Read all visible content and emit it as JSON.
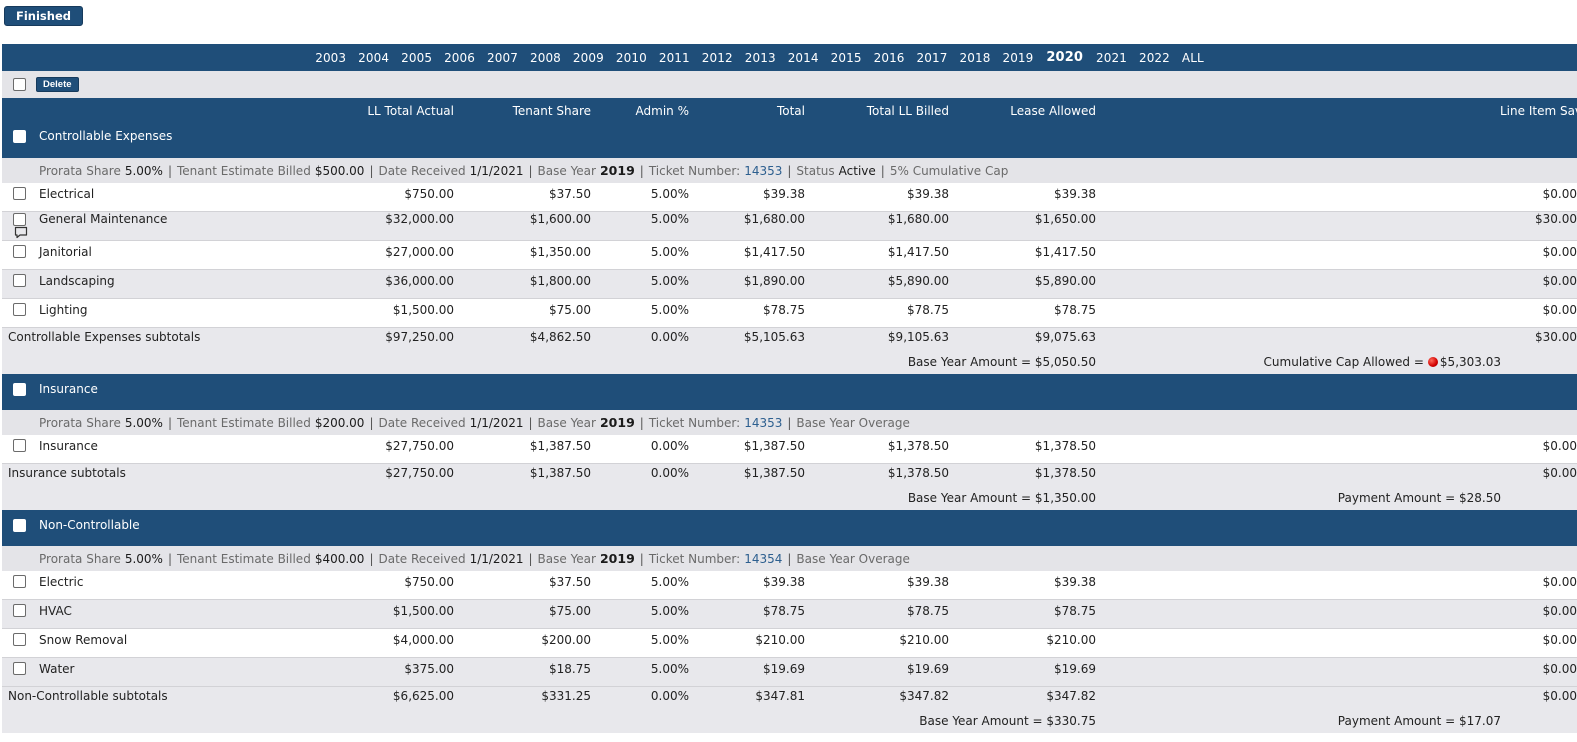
{
  "finished_label": "Finished",
  "years": [
    "2003",
    "2004",
    "2005",
    "2006",
    "2007",
    "2008",
    "2009",
    "2010",
    "2011",
    "2012",
    "2013",
    "2014",
    "2015",
    "2016",
    "2017",
    "2018",
    "2019",
    "2020",
    "2021",
    "2022",
    "ALL"
  ],
  "active_year": "2020",
  "toolbar": {
    "delete_label": "Delete"
  },
  "columns": {
    "ll_total_actual": "LL Total Actual",
    "tenant_share": "Tenant Share",
    "admin_pct": "Admin %",
    "total": "Total",
    "total_ll_billed": "Total LL Billed",
    "lease_allowed": "Lease Allowed",
    "line_item_savings": "Line Item Savings"
  },
  "info_labels": {
    "prorata": "Prorata Share",
    "estimate": "Tenant Estimate Billed",
    "date_received": "Date Received",
    "base_year": "Base Year",
    "ticket": "Ticket Number:",
    "status": "Status"
  },
  "sections": [
    {
      "title": "Controllable Expenses",
      "info": {
        "prorata": "5.00%",
        "estimate": "$500.00",
        "date_received": "1/1/2021",
        "base_year": "2019",
        "ticket": "14353",
        "status": "Active",
        "extra": "5% Cumulative Cap"
      },
      "rows": [
        {
          "name": "Electrical",
          "ll": "$750.00",
          "share": "$37.50",
          "admin": "5.00%",
          "total": "$39.38",
          "billed": "$39.38",
          "allowed": "$39.38",
          "savings": "$0.00"
        },
        {
          "name": "General Maintenance",
          "ll": "$32,000.00",
          "share": "$1,600.00",
          "admin": "5.00%",
          "total": "$1,680.00",
          "billed": "$1,680.00",
          "allowed": "$1,650.00",
          "savings": "$30.00",
          "comment": true
        },
        {
          "name": "Janitorial",
          "ll": "$27,000.00",
          "share": "$1,350.00",
          "admin": "5.00%",
          "total": "$1,417.50",
          "billed": "$1,417.50",
          "allowed": "$1,417.50",
          "savings": "$0.00"
        },
        {
          "name": "Landscaping",
          "ll": "$36,000.00",
          "share": "$1,800.00",
          "admin": "5.00%",
          "total": "$1,890.00",
          "billed": "$5,890.00",
          "allowed": "$5,890.00",
          "savings": "$0.00"
        },
        {
          "name": "Lighting",
          "ll": "$1,500.00",
          "share": "$75.00",
          "admin": "5.00%",
          "total": "$78.75",
          "billed": "$78.75",
          "allowed": "$78.75",
          "savings": "$0.00"
        }
      ],
      "subtotal": {
        "name": "Controllable Expenses subtotals",
        "ll": "$97,250.00",
        "share": "$4,862.50",
        "admin": "0.00%",
        "total": "$5,105.63",
        "billed": "$9,105.63",
        "allowed": "$9,075.63",
        "savings": "$30.00"
      },
      "footer": {
        "left": "Base Year Amount = $5,050.50",
        "right_label": "Cumulative Cap Allowed =",
        "right_value": "$5,303.03",
        "dot": true
      }
    },
    {
      "title": "Insurance",
      "info": {
        "prorata": "5.00%",
        "estimate": "$200.00",
        "date_received": "1/1/2021",
        "base_year": "2019",
        "ticket": "14353",
        "extra": "Base Year Overage"
      },
      "rows": [
        {
          "name": "Insurance",
          "ll": "$27,750.00",
          "share": "$1,387.50",
          "admin": "0.00%",
          "total": "$1,387.50",
          "billed": "$1,378.50",
          "allowed": "$1,378.50",
          "savings": "$0.00"
        }
      ],
      "subtotal": {
        "name": "Insurance subtotals",
        "ll": "$27,750.00",
        "share": "$1,387.50",
        "admin": "0.00%",
        "total": "$1,387.50",
        "billed": "$1,378.50",
        "allowed": "$1,378.50",
        "savings": "$0.00"
      },
      "footer": {
        "left": "Base Year Amount = $1,350.00",
        "right_label": "Payment Amount =",
        "right_value": "$28.50"
      }
    },
    {
      "title": "Non-Controllable",
      "info": {
        "prorata": "5.00%",
        "estimate": "$400.00",
        "date_received": "1/1/2021",
        "base_year": "2019",
        "ticket": "14354",
        "extra": "Base Year Overage"
      },
      "rows": [
        {
          "name": "Electric",
          "ll": "$750.00",
          "share": "$37.50",
          "admin": "5.00%",
          "total": "$39.38",
          "billed": "$39.38",
          "allowed": "$39.38",
          "savings": "$0.00"
        },
        {
          "name": "HVAC",
          "ll": "$1,500.00",
          "share": "$75.00",
          "admin": "5.00%",
          "total": "$78.75",
          "billed": "$78.75",
          "allowed": "$78.75",
          "savings": "$0.00"
        },
        {
          "name": "Snow Removal",
          "ll": "$4,000.00",
          "share": "$200.00",
          "admin": "5.00%",
          "total": "$210.00",
          "billed": "$210.00",
          "allowed": "$210.00",
          "savings": "$0.00"
        },
        {
          "name": "Water",
          "ll": "$375.00",
          "share": "$18.75",
          "admin": "5.00%",
          "total": "$19.69",
          "billed": "$19.69",
          "allowed": "$19.69",
          "savings": "$0.00"
        }
      ],
      "subtotal": {
        "name": "Non-Controllable subtotals",
        "ll": "$6,625.00",
        "share": "$331.25",
        "admin": "0.00%",
        "total": "$347.81",
        "billed": "$347.82",
        "allowed": "$347.82",
        "savings": "$0.00"
      },
      "footer": {
        "left": "Base Year Amount = $330.75",
        "right_label": "Payment Amount =",
        "right_value": "$17.07"
      }
    }
  ]
}
